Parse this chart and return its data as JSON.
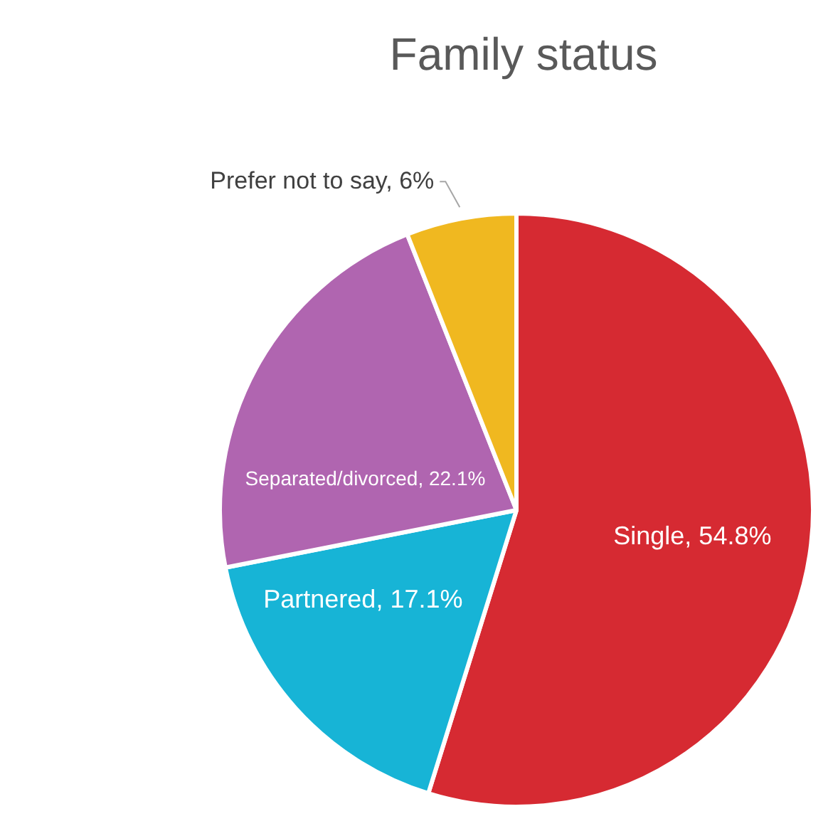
{
  "chart_data": {
    "type": "pie",
    "title": "Family status",
    "categories": [
      "Single",
      "Partnered",
      "Separated/divorced",
      "Prefer not to say"
    ],
    "values": [
      54.8,
      17.1,
      22.1,
      6
    ],
    "colors": [
      "#d62a32",
      "#17b4d6",
      "#b065b0",
      "#f0b820"
    ],
    "value_labels": [
      "54.8%",
      "17.1%",
      "22.1%",
      "6%"
    ],
    "legend": false
  }
}
